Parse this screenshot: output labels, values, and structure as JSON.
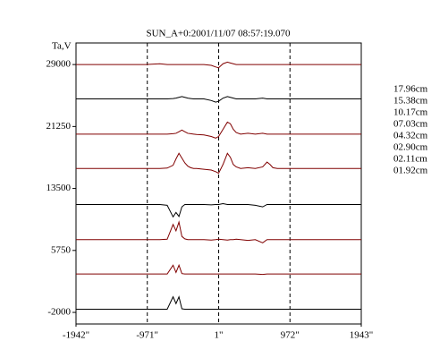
{
  "chart_data": {
    "type": "line",
    "title": "SUN_A+0:2001/11/07 08:57:19.070",
    "y_label": "Ta,V",
    "x": [
      -1942,
      -1500,
      -1000,
      -800,
      -700,
      -620,
      -580,
      -540,
      -500,
      -460,
      -420,
      -380,
      -340,
      -300,
      -200,
      -100,
      -40,
      0,
      60,
      120,
      160,
      200,
      240,
      300,
      400,
      500,
      600,
      660,
      700,
      740,
      800,
      1000,
      1500,
      1943
    ],
    "series": [
      {
        "name": "17.96cm",
        "color": "#800000",
        "values": [
          29000,
          29000,
          29000,
          29100,
          29000,
          29000,
          29000,
          29000,
          29000,
          29000,
          29000,
          29000,
          29000,
          29000,
          29000,
          28900,
          28700,
          28600,
          29100,
          29300,
          29200,
          29100,
          29000,
          29000,
          29000,
          29000,
          29000,
          29000,
          29000,
          29000,
          29000,
          29000,
          29000,
          29000
        ]
      },
      {
        "name": "15.38cm",
        "color": "#000000",
        "values": [
          24700,
          24700,
          24700,
          24700,
          24700,
          24750,
          24800,
          24900,
          25000,
          24900,
          24800,
          24750,
          24700,
          24700,
          24700,
          24500,
          24300,
          24400,
          24800,
          25000,
          24900,
          24800,
          24700,
          24700,
          24700,
          24700,
          24800,
          24700,
          24700,
          24700,
          24700,
          24700,
          24700,
          24700
        ]
      },
      {
        "name": "10.17cm",
        "color": "#800000",
        "values": [
          20300,
          20300,
          20300,
          20300,
          20300,
          20350,
          20400,
          20600,
          20800,
          20600,
          20400,
          20350,
          20300,
          20250,
          20200,
          20000,
          19800,
          20000,
          20900,
          21800,
          21600,
          20900,
          20500,
          20300,
          20400,
          20300,
          20400,
          20300,
          20300,
          20300,
          20300,
          20300,
          20300,
          20300
        ]
      },
      {
        "name": "07.03cm",
        "color": "#800000",
        "values": [
          16000,
          16000,
          16000,
          16000,
          16050,
          16400,
          17200,
          17900,
          17300,
          16700,
          16300,
          16100,
          16000,
          16000,
          15900,
          15800,
          15600,
          15400,
          16500,
          17900,
          17400,
          16500,
          16200,
          16000,
          16100,
          16000,
          16200,
          16800,
          16500,
          16100,
          16000,
          16000,
          16000,
          16000
        ]
      },
      {
        "name": "04.32cm",
        "color": "#000000",
        "values": [
          11500,
          11500,
          11500,
          11500,
          11400,
          9950,
          10500,
          10000,
          11200,
          11500,
          11500,
          11500,
          11500,
          11500,
          11500,
          11450,
          11500,
          11500,
          11600,
          11500,
          11500,
          11500,
          11500,
          11500,
          11500,
          11400,
          11200,
          11500,
          11500,
          11500,
          11500,
          11500,
          11500,
          11500
        ]
      },
      {
        "name": "02.90cm",
        "color": "#800000",
        "values": [
          7100,
          7100,
          7100,
          7100,
          7150,
          9000,
          8200,
          9300,
          7500,
          7200,
          7100,
          7100,
          7100,
          7100,
          7100,
          7050,
          7100,
          7150,
          7100,
          7050,
          7100,
          7100,
          7150,
          7100,
          7000,
          7100,
          6700,
          7100,
          7100,
          7100,
          7100,
          7100,
          7100,
          7100
        ]
      },
      {
        "name": "02.11cm",
        "color": "#800000",
        "values": [
          2800,
          2800,
          2800,
          2800,
          2800,
          3900,
          3000,
          3900,
          2850,
          2800,
          2800,
          2800,
          2800,
          2800,
          2800,
          2800,
          2800,
          2800,
          2800,
          2800,
          2800,
          2800,
          2800,
          2800,
          2800,
          2800,
          2750,
          2800,
          2800,
          2800,
          2800,
          2800,
          2800,
          2800
        ]
      },
      {
        "name": "01.92cm",
        "color": "#000000",
        "values": [
          -1600,
          -1600,
          -1600,
          -1600,
          -1600,
          -50,
          -900,
          -50,
          -1550,
          -1600,
          -1600,
          -1600,
          -1600,
          -1600,
          -1600,
          -1600,
          -1600,
          -1600,
          -1600,
          -1600,
          -1600,
          -1600,
          -1600,
          -1600,
          -1600,
          -1600,
          -1600,
          -1600,
          -1600,
          -1600,
          -1600,
          -1600,
          -1600,
          -1600
        ]
      }
    ],
    "xlim": [
      -1942,
      1943
    ],
    "xticks": [
      {
        "value": -1942,
        "label": "-1942\""
      },
      {
        "value": -971,
        "label": "-971\""
      },
      {
        "value": 1,
        "label": "1\""
      },
      {
        "value": 972,
        "label": "972\""
      },
      {
        "value": 1943,
        "label": "1943\""
      }
    ],
    "ylim": [
      -3450,
      31700
    ],
    "yticks": [
      -2000,
      5750,
      13500,
      21250,
      29000
    ],
    "grid": true,
    "legend": "right"
  }
}
